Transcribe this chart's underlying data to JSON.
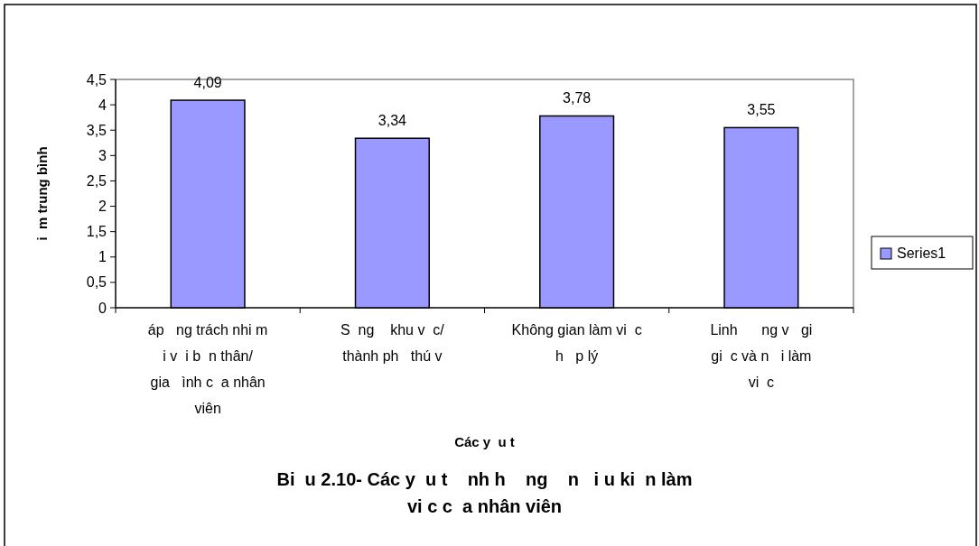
{
  "chart_data": {
    "type": "bar",
    "title": "Bi  u 2.10- Các y  u t    nh h    ng    n   i u ki  n làm vi c c  a nhân viên",
    "xlabel": "Các y  u t",
    "ylabel": "i  m trung bình",
    "categories": [
      "áp   ng trách nhi m    i v  i b  n thân/ gia   ình c  a nhân viên",
      "S  ng    khu v  c/ thành ph   thú v",
      "Không gian làm vi  c h   p lý",
      "Linh      ng v   gi gi  c và n   i làm vi  c"
    ],
    "series": [
      {
        "name": "Series1",
        "color": "#9999ff",
        "values": [
          4.09,
          3.34,
          3.78,
          3.55
        ],
        "value_labels": [
          "4,09",
          "3,34",
          "3,78",
          "3,55"
        ]
      }
    ],
    "ylim": [
      0,
      4.5
    ],
    "yticks": [
      0,
      {
        "value": 0.5,
        "label": "0,5"
      },
      1,
      {
        "value": 1.5,
        "label": "1,5"
      },
      2,
      {
        "value": 2.5,
        "label": "2,5"
      },
      3,
      {
        "value": 3.5,
        "label": "3,5"
      },
      4,
      {
        "value": 4.5,
        "label": "4,5"
      }
    ],
    "grid": false,
    "legend": "right"
  }
}
